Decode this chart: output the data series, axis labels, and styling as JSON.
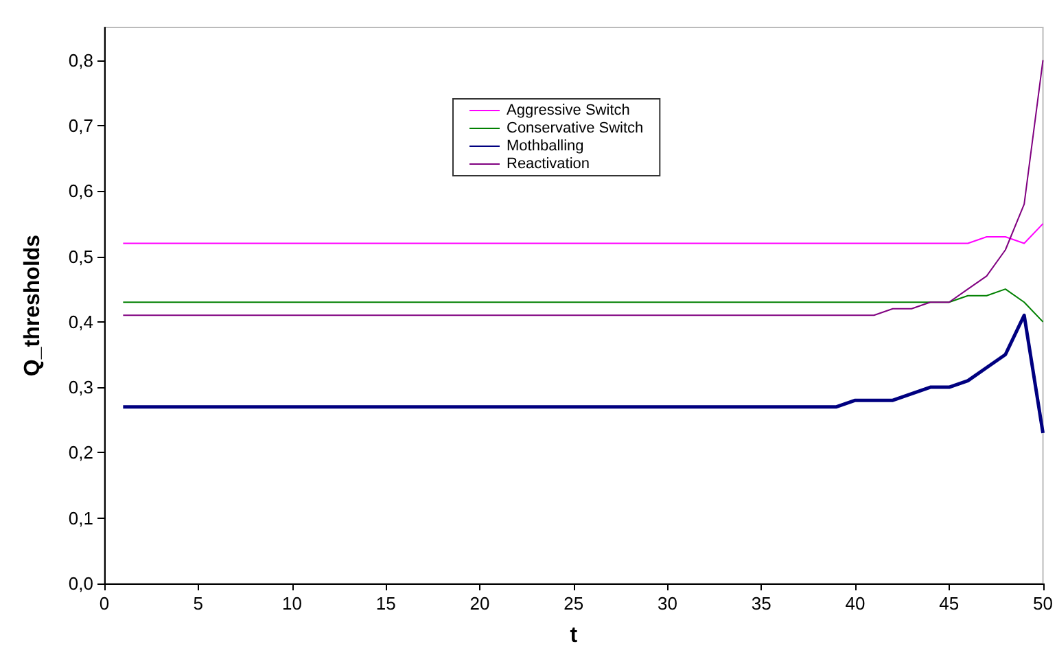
{
  "chart_data": {
    "type": "line",
    "xlabel": "t",
    "ylabel": "Q_thresholds",
    "x": [
      1,
      2,
      3,
      4,
      5,
      6,
      7,
      8,
      9,
      10,
      11,
      12,
      13,
      14,
      15,
      16,
      17,
      18,
      19,
      20,
      21,
      22,
      23,
      24,
      25,
      26,
      27,
      28,
      29,
      30,
      31,
      32,
      33,
      34,
      35,
      36,
      37,
      38,
      39,
      40,
      41,
      42,
      43,
      44,
      45,
      46,
      47,
      48,
      49,
      50
    ],
    "series": [
      {
        "name": "Aggressive Switch",
        "color": "#ff00ff",
        "values": [
          0.52,
          0.52,
          0.52,
          0.52,
          0.52,
          0.52,
          0.52,
          0.52,
          0.52,
          0.52,
          0.52,
          0.52,
          0.52,
          0.52,
          0.52,
          0.52,
          0.52,
          0.52,
          0.52,
          0.52,
          0.52,
          0.52,
          0.52,
          0.52,
          0.52,
          0.52,
          0.52,
          0.52,
          0.52,
          0.52,
          0.52,
          0.52,
          0.52,
          0.52,
          0.52,
          0.52,
          0.52,
          0.52,
          0.52,
          0.52,
          0.52,
          0.52,
          0.52,
          0.52,
          0.52,
          0.52,
          0.53,
          0.53,
          0.52,
          0.55
        ]
      },
      {
        "name": "Conservative Switch",
        "color": "#008000",
        "values": [
          0.43,
          0.43,
          0.43,
          0.43,
          0.43,
          0.43,
          0.43,
          0.43,
          0.43,
          0.43,
          0.43,
          0.43,
          0.43,
          0.43,
          0.43,
          0.43,
          0.43,
          0.43,
          0.43,
          0.43,
          0.43,
          0.43,
          0.43,
          0.43,
          0.43,
          0.43,
          0.43,
          0.43,
          0.43,
          0.43,
          0.43,
          0.43,
          0.43,
          0.43,
          0.43,
          0.43,
          0.43,
          0.43,
          0.43,
          0.43,
          0.43,
          0.43,
          0.43,
          0.43,
          0.43,
          0.44,
          0.44,
          0.45,
          0.43,
          0.4
        ]
      },
      {
        "name": "Mothballing",
        "color": "#000080",
        "values": [
          0.27,
          0.27,
          0.27,
          0.27,
          0.27,
          0.27,
          0.27,
          0.27,
          0.27,
          0.27,
          0.27,
          0.27,
          0.27,
          0.27,
          0.27,
          0.27,
          0.27,
          0.27,
          0.27,
          0.27,
          0.27,
          0.27,
          0.27,
          0.27,
          0.27,
          0.27,
          0.27,
          0.27,
          0.27,
          0.27,
          0.27,
          0.27,
          0.27,
          0.27,
          0.27,
          0.27,
          0.27,
          0.27,
          0.27,
          0.28,
          0.28,
          0.28,
          0.29,
          0.3,
          0.3,
          0.31,
          0.33,
          0.35,
          0.41,
          0.23
        ]
      },
      {
        "name": "Reactivation",
        "color": "#800080",
        "values": [
          0.41,
          0.41,
          0.41,
          0.41,
          0.41,
          0.41,
          0.41,
          0.41,
          0.41,
          0.41,
          0.41,
          0.41,
          0.41,
          0.41,
          0.41,
          0.41,
          0.41,
          0.41,
          0.41,
          0.41,
          0.41,
          0.41,
          0.41,
          0.41,
          0.41,
          0.41,
          0.41,
          0.41,
          0.41,
          0.41,
          0.41,
          0.41,
          0.41,
          0.41,
          0.41,
          0.41,
          0.41,
          0.41,
          0.41,
          0.41,
          0.41,
          0.42,
          0.42,
          0.43,
          0.43,
          0.45,
          0.47,
          0.51,
          0.58,
          0.8
        ]
      }
    ],
    "xlim": [
      0,
      50
    ],
    "xticks": [
      0,
      5,
      10,
      15,
      20,
      25,
      30,
      35,
      40,
      45,
      50
    ],
    "ylim": [
      0,
      0.85
    ],
    "yticks": [
      {
        "value": 0,
        "label": "0,0"
      },
      {
        "value": 0.1,
        "label": "0,1"
      },
      {
        "value": 0.2,
        "label": "0,2"
      },
      {
        "value": 0.3,
        "label": "0,3"
      },
      {
        "value": 0.4,
        "label": "0,4"
      },
      {
        "value": 0.5,
        "label": "0,5"
      },
      {
        "value": 0.6,
        "label": "0,6"
      },
      {
        "value": 0.7,
        "label": "0,7"
      },
      {
        "value": 0.8,
        "label": "0,8"
      }
    ],
    "grid": false,
    "legend": "top",
    "marker": "none",
    "line_style": "solid"
  }
}
